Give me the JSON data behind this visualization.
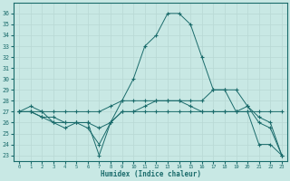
{
  "xlabel": "Humidex (Indice chaleur)",
  "xlim": [
    -0.5,
    23.5
  ],
  "ylim": [
    22.5,
    37.0
  ],
  "yticks": [
    23,
    24,
    25,
    26,
    27,
    28,
    29,
    30,
    31,
    32,
    33,
    34,
    35,
    36
  ],
  "xticks": [
    0,
    1,
    2,
    3,
    4,
    5,
    6,
    7,
    8,
    9,
    10,
    11,
    12,
    13,
    14,
    15,
    16,
    17,
    18,
    19,
    20,
    21,
    22,
    23
  ],
  "bg_color": "#c8e8e4",
  "line_color": "#1a6b6b",
  "grid_color": "#b8d8d4",
  "lines": [
    {
      "x": [
        0,
        1,
        2,
        3,
        4,
        5,
        6,
        7,
        8,
        9,
        10,
        11,
        12,
        13,
        14,
        15,
        16,
        17,
        18,
        19,
        20,
        21,
        22,
        23
      ],
      "y": [
        27,
        27,
        27,
        26,
        26,
        26,
        26,
        23,
        26,
        28,
        30,
        33,
        34,
        36,
        36,
        35,
        32,
        29,
        29,
        27,
        27,
        24,
        24,
        23
      ]
    },
    {
      "x": [
        0,
        1,
        2,
        3,
        4,
        5,
        6,
        7,
        8,
        9,
        10,
        11,
        12,
        13,
        14,
        15,
        16,
        17,
        18,
        19,
        20,
        21,
        22,
        23
      ],
      "y": [
        27,
        27.5,
        27,
        27,
        27,
        27,
        27,
        27,
        27.5,
        28,
        28,
        28,
        28,
        28,
        28,
        28,
        28,
        29,
        29,
        29,
        27.5,
        26,
        25.5,
        23
      ]
    },
    {
      "x": [
        0,
        1,
        2,
        3,
        4,
        5,
        6,
        7,
        8,
        9,
        10,
        11,
        12,
        13,
        14,
        15,
        16,
        17,
        18,
        19,
        20,
        21,
        22,
        23
      ],
      "y": [
        27,
        27,
        26.5,
        26.5,
        26,
        26,
        26,
        25.5,
        26,
        27,
        27,
        27.5,
        28,
        28,
        28,
        27.5,
        27,
        27,
        27,
        27,
        27.5,
        26.5,
        26,
        23
      ]
    },
    {
      "x": [
        0,
        1,
        2,
        3,
        4,
        5,
        6,
        7,
        8,
        9,
        10,
        11,
        12,
        13,
        14,
        15,
        16,
        17,
        18,
        19,
        20,
        21,
        22,
        23
      ],
      "y": [
        27,
        27,
        26.5,
        26,
        25.5,
        26,
        25.5,
        24,
        26,
        27,
        27,
        27,
        27,
        27,
        27,
        27,
        27,
        27,
        27,
        27,
        27,
        27,
        27,
        27
      ]
    }
  ]
}
